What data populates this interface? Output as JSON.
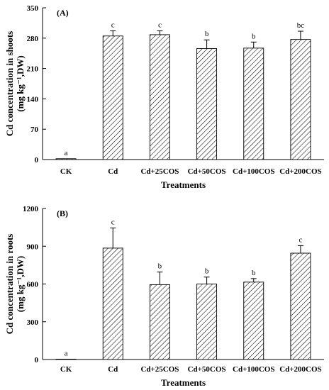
{
  "chart_data": [
    {
      "type": "bar",
      "panel_label": "(A)",
      "categories": [
        "CK",
        "Cd",
        "Cd+25COS",
        "Cd+50COS",
        "Cd+100COS",
        "Cd+200COS"
      ],
      "values": [
        2,
        285,
        288,
        256,
        257,
        277
      ],
      "errors": [
        0,
        12,
        9,
        20,
        14,
        19
      ],
      "significance": [
        "a",
        "c",
        "c",
        "b",
        "b",
        "bc"
      ],
      "ylabel_line1": "Cd concentration in shoots",
      "ylabel_line2": "(mg kg⁻¹,DW)",
      "xlabel": "Treatments",
      "ylim": [
        0,
        350
      ],
      "yticks": [
        0,
        70,
        140,
        210,
        280,
        350
      ],
      "grid": false,
      "fill": "diagonal-hatch"
    },
    {
      "type": "bar",
      "panel_label": "(B)",
      "categories": [
        "CK",
        "Cd",
        "Cd+25COS",
        "Cd+50COS",
        "Cd+100COS",
        "Cd+200COS"
      ],
      "values": [
        3,
        885,
        595,
        600,
        615,
        845
      ],
      "errors": [
        0,
        160,
        100,
        55,
        28,
        60
      ],
      "significance": [
        "a",
        "c",
        "b",
        "b",
        "b",
        "c"
      ],
      "ylabel_line1": "Cd concentration in roots",
      "ylabel_line2": "(mg kg⁻¹,DW)",
      "xlabel": "Treatments",
      "ylim": [
        0,
        1200
      ],
      "yticks": [
        0,
        300,
        600,
        900,
        1200
      ],
      "grid": false,
      "fill": "diagonal-hatch"
    }
  ]
}
